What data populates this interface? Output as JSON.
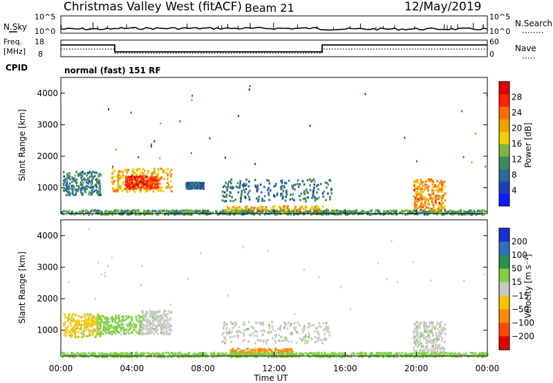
{
  "header": {
    "station": "Christmas Valley West (fitACF)",
    "beam": "Beam 21",
    "date": "12/May/2019"
  },
  "noise_panel": {
    "left_label": "N.Sky",
    "left_ticks": [
      "10^5",
      "10^0"
    ],
    "right_ticks": [
      "10^5",
      "10^0"
    ],
    "right_label": "N.Search",
    "line_color": "#000000"
  },
  "freq_panel": {
    "left_label_1": "Freq.",
    "left_label_2": "[MHz]",
    "left_ticks": [
      "18",
      "8"
    ],
    "right_ticks": [
      "60",
      "0"
    ],
    "right_label": "Nave",
    "cpid_label": "CPID",
    "cpid_value": "normal (fast) 151 RF"
  },
  "chart_data": [
    {
      "type": "heatmap",
      "title": "",
      "ylabel": "Slant Range [km]",
      "xlabel": "",
      "xlim": [
        0,
        24
      ],
      "ylim": [
        180,
        4500
      ],
      "y_ticks": [
        "1000",
        "2000",
        "3000",
        "4000"
      ],
      "colorbar": {
        "label": "Power [dB]",
        "ticks": [
          "4",
          "8",
          "12",
          "16",
          "20",
          "24",
          "28"
        ],
        "range": [
          0,
          32
        ],
        "colors": [
          "#0a1cff",
          "#1f3fb8",
          "#2e6a9e",
          "#3a8a5a",
          "#7fb640",
          "#f0d000",
          "#f4a000",
          "#ff6a00",
          "#ff2000",
          "#e00000"
        ]
      },
      "echo_regions": [
        {
          "t_start": 0.1,
          "t_end": 2.2,
          "r_min": 800,
          "r_max": 1550,
          "level": 10
        },
        {
          "t_start": 2.8,
          "t_end": 6.2,
          "r_min": 900,
          "r_max": 1650,
          "level": 20
        },
        {
          "t_start": 3.6,
          "t_end": 5.4,
          "r_min": 1000,
          "r_max": 1400,
          "level": 27
        },
        {
          "t_start": 7.0,
          "t_end": 8.0,
          "r_min": 1000,
          "r_max": 1200,
          "level": 8
        },
        {
          "t_start": 9.0,
          "t_end": 15.2,
          "r_min": 600,
          "r_max": 1300,
          "level": 9
        },
        {
          "t_start": 9.3,
          "t_end": 15.0,
          "r_min": 200,
          "r_max": 450,
          "level": 20
        },
        {
          "t_start": 19.8,
          "t_end": 21.6,
          "r_min": 300,
          "r_max": 1300,
          "level": 22
        },
        {
          "t_start": 0.0,
          "t_end": 24.0,
          "r_min": 180,
          "r_max": 320,
          "level": 12
        }
      ]
    },
    {
      "type": "heatmap",
      "title": "",
      "ylabel": "Slant Range [km]",
      "xlabel": "Time UT",
      "xlim": [
        0,
        24
      ],
      "ylim": [
        180,
        4500
      ],
      "y_ticks": [
        "1000",
        "2000",
        "3000",
        "4000"
      ],
      "x_ticks": [
        "00:00",
        "04:00",
        "08:00",
        "12:00",
        "16:00",
        "20:00",
        "00:00"
      ],
      "colorbar": {
        "label": "Velocity [m s⁻¹]",
        "ticks": [
          "200",
          "100",
          "50",
          "15",
          "−15",
          "−50",
          "−100",
          "−200"
        ],
        "colors": [
          "#1a2fd0",
          "#2f6fc0",
          "#2a9050",
          "#7fd040",
          "#c8c8c8",
          "#f6c400",
          "#ff8c00",
          "#ff4a00",
          "#e00000"
        ]
      },
      "echo_regions": [
        {
          "t_start": 0.1,
          "t_end": 2.2,
          "r_min": 800,
          "r_max": 1550,
          "level": "-15"
        },
        {
          "t_start": 2.0,
          "t_end": 4.5,
          "r_min": 900,
          "r_max": 1500,
          "level": "50"
        },
        {
          "t_start": 4.5,
          "t_end": 6.2,
          "r_min": 900,
          "r_max": 1650,
          "level": "0"
        },
        {
          "t_start": 9.0,
          "t_end": 15.2,
          "r_min": 600,
          "r_max": 1300,
          "level": "0"
        },
        {
          "t_start": 9.5,
          "t_end": 13.0,
          "r_min": 200,
          "r_max": 450,
          "level": "-50"
        },
        {
          "t_start": 19.8,
          "t_end": 21.6,
          "r_min": 300,
          "r_max": 1300,
          "level": "0"
        },
        {
          "t_start": 0.0,
          "t_end": 24.0,
          "r_min": 180,
          "r_max": 320,
          "level": "50"
        }
      ]
    }
  ]
}
